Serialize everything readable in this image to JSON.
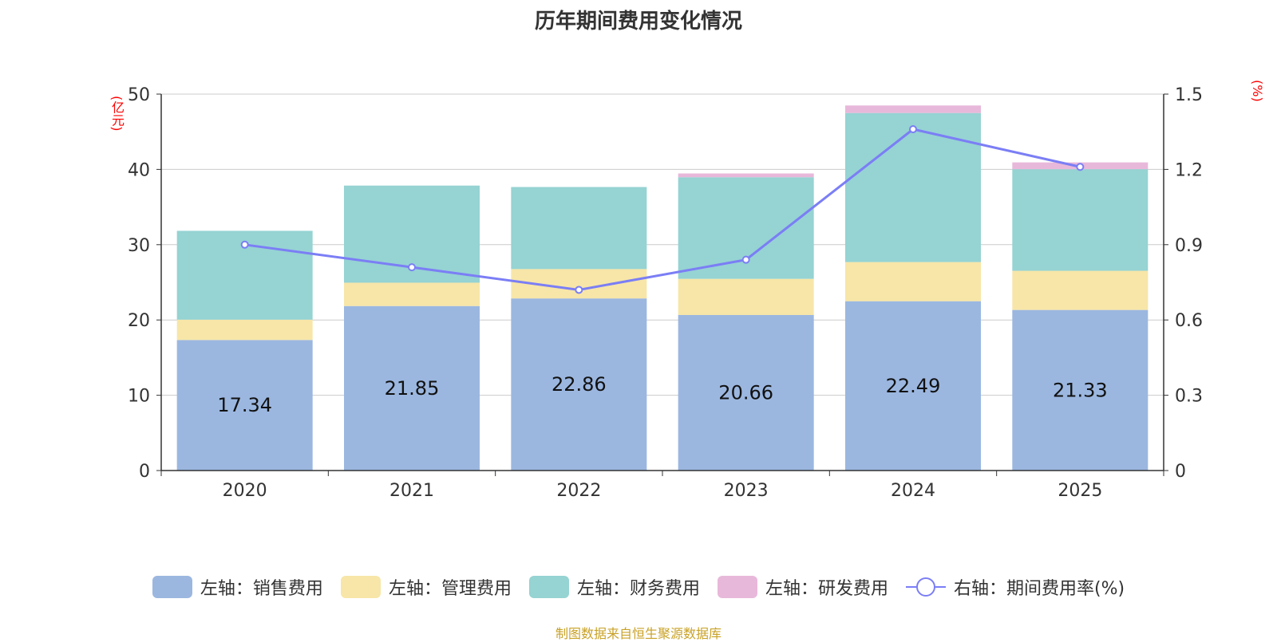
{
  "chart_data": {
    "type": "bar",
    "title": "历年期间费用变化情况",
    "categories": [
      "2020",
      "2021",
      "2022",
      "2023",
      "2024",
      "2025"
    ],
    "series": [
      {
        "name": "左轴：销售费用",
        "axis": "left",
        "color": "#9bb7e0",
        "values": [
          17.34,
          21.85,
          22.86,
          20.66,
          22.49,
          21.33
        ],
        "labels": [
          "17.34",
          "21.85",
          "22.86",
          "20.66",
          "22.49",
          "21.33"
        ]
      },
      {
        "name": "左轴：管理费用",
        "axis": "left",
        "color": "#f7e6a8",
        "values": [
          2.7,
          3.1,
          3.9,
          4.8,
          5.2,
          5.2
        ]
      },
      {
        "name": "左轴：财务费用",
        "axis": "left",
        "color": "#96d3d3",
        "values": [
          11.8,
          12.9,
          10.9,
          13.5,
          19.8,
          13.5
        ]
      },
      {
        "name": "左轴：研发费用",
        "axis": "left",
        "color": "#e8b8da",
        "values": [
          0.0,
          0.0,
          0.0,
          0.5,
          1.0,
          0.9
        ]
      },
      {
        "name": "右轴：期间费用率(%)",
        "axis": "right",
        "type": "line",
        "color": "#7b7ef5",
        "values": [
          0.9,
          0.81,
          0.72,
          0.84,
          1.36,
          1.21
        ]
      }
    ],
    "ylim": [
      0,
      50
    ],
    "y2lim": [
      0,
      1.5
    ],
    "yticks": [
      "0",
      "10",
      "20",
      "30",
      "40",
      "50"
    ],
    "y2ticks": [
      "0",
      "0.3",
      "0.6",
      "0.9",
      "1.2",
      "1.5"
    ],
    "ylabel": "(亿元)",
    "y2label": "(%)",
    "grid": true,
    "legend_position": "bottom"
  },
  "source_note": "制图数据来自恒生聚源数据库"
}
